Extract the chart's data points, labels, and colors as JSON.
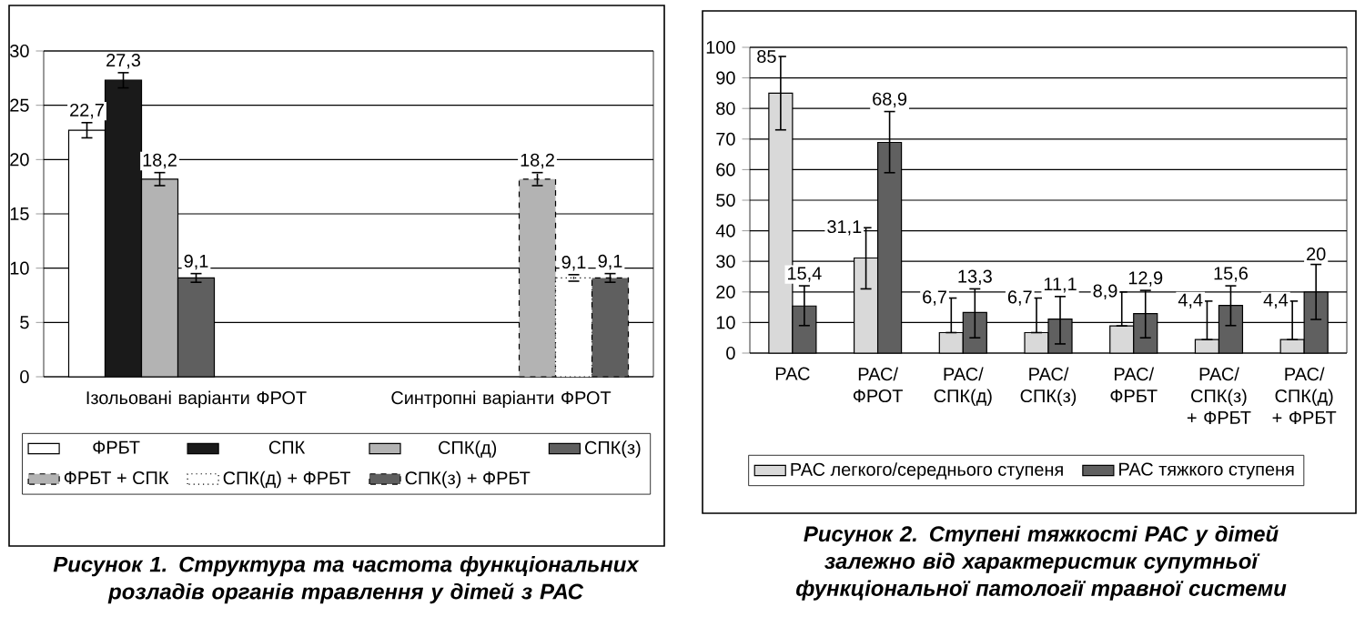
{
  "chart_data": [
    {
      "type": "bar",
      "categories": [
        "Ізольовані варіанти ФРОТ",
        "Синтропні варіанти ФРОТ"
      ],
      "series": [
        {
          "name": "ФРБТ",
          "color": "#ffffff",
          "values": [
            22.7,
            null
          ],
          "errors": [
            0.7,
            null
          ],
          "value_labels": [
            "22,7",
            null
          ]
        },
        {
          "name": "СПК",
          "color": "#1a1a1a",
          "values": [
            27.3,
            null
          ],
          "errors": [
            0.7,
            null
          ],
          "value_labels": [
            "27,3",
            null
          ]
        },
        {
          "name": "СПК(д)",
          "color": "#b3b3b3",
          "values": [
            18.2,
            null
          ],
          "errors": [
            0.6,
            null
          ],
          "value_labels": [
            "18,2",
            null
          ]
        },
        {
          "name": "СПК(з)",
          "color": "#5f5f5f",
          "values": [
            9.1,
            null
          ],
          "errors": [
            0.4,
            null
          ],
          "value_labels": [
            "9,1",
            null
          ]
        },
        {
          "name": "ФРБТ + СПК",
          "color": "#b3b3b3",
          "line_style": "dashed",
          "values": [
            null,
            18.2
          ],
          "errors": [
            null,
            0.6
          ],
          "value_labels": [
            null,
            "18,2"
          ]
        },
        {
          "name": "СПК(д) + ФРБТ",
          "color": "#ffffff",
          "line_style": "dotted",
          "values": [
            null,
            9.1
          ],
          "errors": [
            null,
            0.3
          ],
          "value_labels": [
            null,
            "9,1"
          ]
        },
        {
          "name": "СПК(з) + ФРБТ",
          "color": "#5f5f5f",
          "line_style": "dashed",
          "values": [
            null,
            9.1
          ],
          "errors": [
            null,
            0.4
          ],
          "value_labels": [
            null,
            "9,1"
          ]
        }
      ],
      "ylim": [
        0,
        30
      ],
      "yticks": [
        0,
        5,
        10,
        15,
        20,
        25,
        30
      ],
      "grid": "y",
      "legend": "bottom",
      "annotations": [
        "Рисунок 1. Структура та частота функціональних розладів органів травлення у дітей з РАС"
      ]
    },
    {
      "type": "bar",
      "categories": [
        "РАС",
        "РАС/ ФРОТ",
        "РАС/ СПК(д)",
        "РАС/ СПК(з)",
        "РАС/ ФРБТ",
        "РАС/ СПК(з) + ФРБТ",
        "РАС/ СПК(д) + ФРБТ"
      ],
      "series": [
        {
          "name": "РАС легкого/середнього ступеня",
          "color": "#d9d9d9",
          "values": [
            85,
            31.1,
            6.7,
            6.7,
            8.9,
            4.4,
            4.4
          ],
          "errors": [
            [
              73,
              97
            ],
            [
              21,
              41
            ],
            [
              6.7,
              18
            ],
            [
              6.7,
              18
            ],
            [
              8.9,
              20
            ],
            [
              4.4,
              17
            ],
            [
              4.4,
              17
            ]
          ],
          "value_labels": [
            "85",
            "31,1",
            "6,7",
            "6,7",
            "8,9",
            "4,4",
            "4,4"
          ]
        },
        {
          "name": "РАС тяжкого ступеня",
          "color": "#606060",
          "values": [
            15.4,
            68.9,
            13.3,
            11.1,
            12.9,
            15.6,
            20
          ],
          "errors": [
            [
              9,
              22
            ],
            [
              59,
              79
            ],
            [
              5,
              21
            ],
            [
              3,
              18.5
            ],
            [
              5,
              20.5
            ],
            [
              9,
              22
            ],
            [
              11,
              29
            ]
          ],
          "value_labels": [
            "15,4",
            "68,9",
            "13,3",
            "11,1",
            "12,9",
            "15,6",
            "20"
          ]
        }
      ],
      "ylim": [
        0,
        100
      ],
      "yticks": [
        0,
        10,
        20,
        30,
        40,
        50,
        60,
        70,
        80,
        90,
        100
      ],
      "grid": "y",
      "legend": "bottom",
      "annotations": [
        "Рисунок 2. Ступені тяжкості РАС у дітей залежно від характеристик супутньої функціональної патології травної системи"
      ]
    }
  ]
}
